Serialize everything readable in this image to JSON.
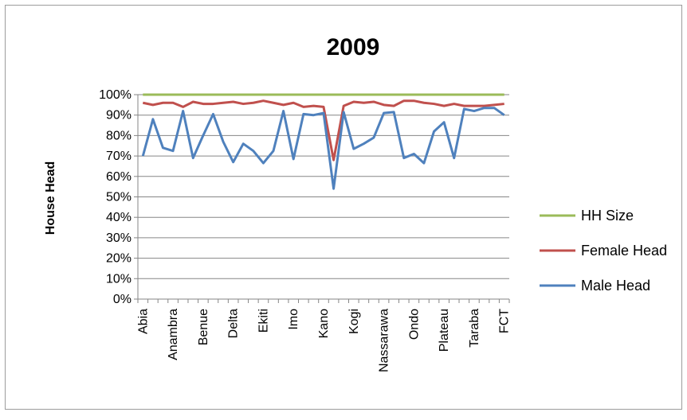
{
  "chart_data": {
    "type": "line",
    "title": "2009",
    "xlabel": "",
    "ylabel": "House Head",
    "ylim": [
      0,
      1
    ],
    "y_ticks": [
      "0%",
      "10%",
      "20%",
      "30%",
      "40%",
      "50%",
      "60%",
      "70%",
      "80%",
      "90%",
      "100%"
    ],
    "tick_labels": [
      "Abia",
      "Anambra",
      "Benue",
      "Delta",
      "Ekiti",
      "Imo",
      "Kano",
      "Kogi",
      "Nassarawa",
      "Ondo",
      "Plateau",
      "Taraba",
      "FCT"
    ],
    "point_count": 37,
    "label_every": 3,
    "grid": true,
    "legend_position": "right",
    "series": [
      {
        "name": "HH Size",
        "color": "#9bbb59",
        "values": [
          1,
          1,
          1,
          1,
          1,
          1,
          1,
          1,
          1,
          1,
          1,
          1,
          1,
          1,
          1,
          1,
          1,
          1,
          1,
          1,
          1,
          1,
          1,
          1,
          1,
          1,
          1,
          1,
          1,
          1,
          1,
          1,
          1,
          1,
          1,
          1,
          1
        ]
      },
      {
        "name": "Female Head",
        "color": "#c0504d",
        "values": [
          0.96,
          0.95,
          0.96,
          0.96,
          0.94,
          0.965,
          0.955,
          0.955,
          0.96,
          0.965,
          0.955,
          0.96,
          0.97,
          0.96,
          0.95,
          0.96,
          0.94,
          0.945,
          0.94,
          0.68,
          0.945,
          0.965,
          0.96,
          0.965,
          0.95,
          0.945,
          0.97,
          0.97,
          0.96,
          0.955,
          0.945,
          0.955,
          0.945,
          0.945,
          0.945,
          0.95,
          0.955
        ]
      },
      {
        "name": "Male Head",
        "color": "#4f81bd",
        "values": [
          0.7,
          0.88,
          0.74,
          0.725,
          0.92,
          0.69,
          0.8,
          0.905,
          0.77,
          0.67,
          0.76,
          0.725,
          0.665,
          0.725,
          0.92,
          0.685,
          0.905,
          0.9,
          0.91,
          0.54,
          0.915,
          0.735,
          0.76,
          0.79,
          0.91,
          0.915,
          0.69,
          0.71,
          0.665,
          0.82,
          0.865,
          0.69,
          0.93,
          0.92,
          0.935,
          0.935,
          0.9
        ]
      }
    ]
  }
}
